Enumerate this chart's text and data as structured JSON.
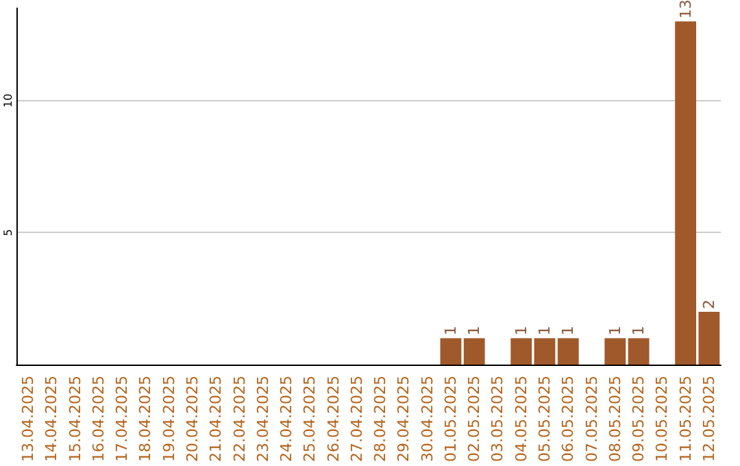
{
  "chart_data": {
    "type": "bar",
    "categories": [
      "13.04.2025",
      "14.04.2025",
      "15.04.2025",
      "16.04.2025",
      "17.04.2025",
      "18.04.2025",
      "19.04.2025",
      "20.04.2025",
      "21.04.2025",
      "22.04.2025",
      "23.04.2025",
      "24.04.2025",
      "25.04.2025",
      "26.04.2025",
      "27.04.2025",
      "28.04.2025",
      "29.04.2025",
      "30.04.2025",
      "01.05.2025",
      "02.05.2025",
      "03.05.2025",
      "04.05.2025",
      "05.05.2025",
      "06.05.2025",
      "07.05.2025",
      "08.05.2025",
      "09.05.2025",
      "10.05.2025",
      "11.05.2025",
      "12.05.2025"
    ],
    "values": [
      0,
      0,
      0,
      0,
      0,
      0,
      0,
      0,
      0,
      0,
      0,
      0,
      0,
      0,
      0,
      0,
      0,
      0,
      1,
      1,
      0,
      1,
      1,
      1,
      0,
      1,
      1,
      0,
      13,
      2
    ],
    "value_labels": [
      null,
      null,
      null,
      null,
      null,
      null,
      null,
      null,
      null,
      null,
      null,
      null,
      null,
      null,
      null,
      null,
      null,
      null,
      "1",
      "1",
      null,
      "1",
      "1",
      "1",
      null,
      "1",
      "1",
      null,
      "13",
      "2"
    ],
    "color": "#a0592a",
    "ylim": [
      0,
      13.5
    ],
    "yticks": [
      5,
      10
    ],
    "grid": "y"
  }
}
